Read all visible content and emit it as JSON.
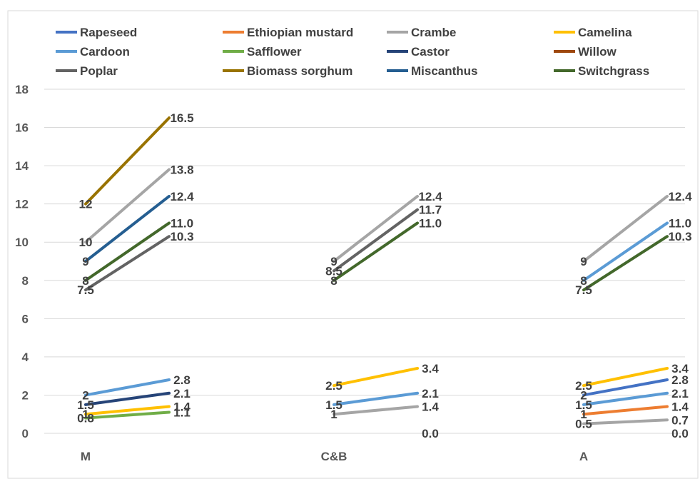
{
  "chart_data": {
    "type": "line",
    "ylim": [
      0,
      18
    ],
    "yticks": [
      "0",
      "2",
      "4",
      "6",
      "8",
      "10",
      "12",
      "14",
      "16",
      "18"
    ],
    "grid": true,
    "legend_position": "top",
    "categories": [
      "M",
      "C&B",
      "A"
    ],
    "series": [
      {
        "name": "Rapeseed",
        "color": "#4472C4",
        "segments": [
          {
            "cat": "A",
            "y": [
              2,
              2.8
            ],
            "labels": [
              "2",
              "2.8"
            ]
          }
        ]
      },
      {
        "name": "Ethiopian mustard",
        "color": "#ED7D31",
        "segments": [
          {
            "cat": "A",
            "y": [
              1,
              1.4
            ],
            "labels": [
              "1",
              "1.4"
            ]
          }
        ]
      },
      {
        "name": "Crambe",
        "color": "#A5A5A5",
        "segments": [
          {
            "cat": "M",
            "y": [
              10,
              13.8
            ],
            "labels": [
              "10",
              "13.8"
            ]
          },
          {
            "cat": "C&B",
            "y": [
              1,
              1.4
            ],
            "labels": [
              "1",
              "1.4"
            ]
          },
          {
            "cat": "C&B",
            "y": [
              9,
              12.4
            ],
            "labels": [
              "9",
              "12.4"
            ]
          },
          {
            "cat": "A",
            "y": [
              0.5,
              0.7
            ],
            "labels": [
              "0.5",
              "0.7"
            ]
          },
          {
            "cat": "A",
            "y": [
              9,
              12.4
            ],
            "labels": [
              "9",
              "12.4"
            ]
          }
        ]
      },
      {
        "name": "Camelina",
        "color": "#FFC000",
        "segments": [
          {
            "cat": "M",
            "y": [
              1,
              1.4
            ],
            "labels": [
              "1",
              "1.4"
            ]
          },
          {
            "cat": "C&B",
            "y": [
              2.5,
              3.4
            ],
            "labels": [
              "2.5",
              "3.4"
            ]
          },
          {
            "cat": "A",
            "y": [
              2.5,
              3.4
            ],
            "labels": [
              "2.5",
              "3.4"
            ]
          }
        ]
      },
      {
        "name": "Cardoon",
        "color": "#5B9BD5",
        "segments": [
          {
            "cat": "M",
            "y": [
              2,
              2.8
            ],
            "labels": [
              "2",
              "2.8"
            ]
          },
          {
            "cat": "C&B",
            "y": [
              1.5,
              2.1
            ],
            "labels": [
              "1.5",
              "2.1"
            ]
          },
          {
            "cat": "A",
            "y": [
              1.5,
              2.1
            ],
            "labels": [
              "1.5",
              "2.1"
            ]
          },
          {
            "cat": "A",
            "y": [
              8,
              11.0
            ],
            "labels": [
              "8",
              "11.0"
            ]
          }
        ]
      },
      {
        "name": "Safflower",
        "color": "#70AD47",
        "segments": [
          {
            "cat": "M",
            "y": [
              0.8,
              1.1
            ],
            "labels": [
              "0.8",
              "1.1"
            ]
          }
        ]
      },
      {
        "name": "Castor",
        "color": "#264478",
        "segments": [
          {
            "cat": "M",
            "y": [
              1.5,
              2.1
            ],
            "labels": [
              "1.5",
              "2.1"
            ]
          }
        ]
      },
      {
        "name": "Willow",
        "color": "#9E480E",
        "segments": []
      },
      {
        "name": "Poplar",
        "color": "#636363",
        "segments": [
          {
            "cat": "M",
            "y": [
              7.5,
              10.3
            ],
            "labels": [
              "7.5",
              "10.3"
            ]
          },
          {
            "cat": "C&B",
            "y": [
              8.5,
              11.7
            ],
            "labels": [
              "8.5",
              "11.7"
            ]
          }
        ]
      },
      {
        "name": "Biomass sorghum",
        "color": "#997300",
        "segments": [
          {
            "cat": "M",
            "y": [
              12,
              16.5
            ],
            "labels": [
              "12",
              "16.5"
            ]
          }
        ]
      },
      {
        "name": "Miscanthus",
        "color": "#255E91",
        "segments": [
          {
            "cat": "M",
            "y": [
              9,
              12.4
            ],
            "labels": [
              "9",
              "12.4"
            ]
          }
        ]
      },
      {
        "name": "Switchgrass",
        "color": "#43682B",
        "segments": [
          {
            "cat": "M",
            "y": [
              8,
              11.0
            ],
            "labels": [
              "8",
              "11.0"
            ]
          },
          {
            "cat": "C&B",
            "y": [
              8,
              11.0
            ],
            "labels": [
              "8",
              "11.0"
            ]
          },
          {
            "cat": "A",
            "y": [
              7.5,
              10.3
            ],
            "labels": [
              "7.5",
              "10.3"
            ]
          }
        ]
      }
    ],
    "standalone_labels": [
      {
        "cat": "C&B",
        "y": 0,
        "label": "0.0"
      },
      {
        "cat": "A",
        "y": 0,
        "label": "0.0"
      }
    ]
  }
}
